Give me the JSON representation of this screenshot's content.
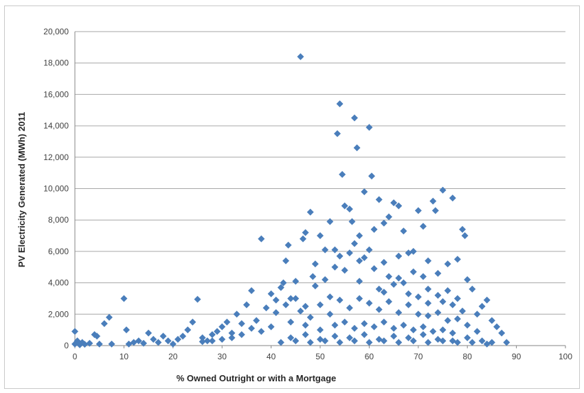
{
  "chart_data": {
    "type": "scatter",
    "title": "",
    "xlabel": "% Owned Outright or with a Mortgage",
    "ylabel": "PV Electricity Generated (MWh) 2011",
    "xlim": [
      0,
      100
    ],
    "ylim": [
      0,
      20000
    ],
    "x_ticks": [
      "0",
      "10",
      "20",
      "30",
      "40",
      "50",
      "60",
      "70",
      "80",
      "90",
      "100"
    ],
    "y_ticks": [
      "0",
      "2,000",
      "4,000",
      "6,000",
      "8,000",
      "10,000",
      "12,000",
      "14,000",
      "16,000",
      "18,000",
      "20,000"
    ],
    "grid": "horizontal",
    "legend": "none",
    "marker": "diamond",
    "color": "#4a7ebb",
    "points": [
      [
        0,
        900
      ],
      [
        0,
        100
      ],
      [
        0.5,
        300
      ],
      [
        1,
        50
      ],
      [
        1.5,
        200
      ],
      [
        2,
        80
      ],
      [
        3,
        150
      ],
      [
        4,
        700
      ],
      [
        4.5,
        600
      ],
      [
        5,
        100
      ],
      [
        6,
        1400
      ],
      [
        7,
        1800
      ],
      [
        7.5,
        100
      ],
      [
        10,
        3000
      ],
      [
        10.5,
        1000
      ],
      [
        11,
        100
      ],
      [
        12,
        200
      ],
      [
        13,
        300
      ],
      [
        14,
        150
      ],
      [
        15,
        800
      ],
      [
        16,
        400
      ],
      [
        17,
        200
      ],
      [
        18,
        600
      ],
      [
        19,
        300
      ],
      [
        20,
        100
      ],
      [
        21,
        400
      ],
      [
        22,
        600
      ],
      [
        23,
        1000
      ],
      [
        24,
        1500
      ],
      [
        25,
        2950
      ],
      [
        26,
        500
      ],
      [
        27,
        300
      ],
      [
        28,
        700
      ],
      [
        29,
        900
      ],
      [
        30,
        1200
      ],
      [
        31,
        1500
      ],
      [
        32,
        800
      ],
      [
        33,
        2000
      ],
      [
        34,
        1400
      ],
      [
        35,
        2600
      ],
      [
        36,
        3500
      ],
      [
        37,
        1600
      ],
      [
        38,
        6800
      ],
      [
        39,
        2400
      ],
      [
        40,
        3300
      ],
      [
        41,
        2900
      ],
      [
        42,
        3700
      ],
      [
        42.5,
        4000
      ],
      [
        43,
        5400
      ],
      [
        43.5,
        6400
      ],
      [
        44,
        3000
      ],
      [
        45,
        4100
      ],
      [
        46,
        18400
      ],
      [
        46.5,
        6800
      ],
      [
        47,
        7200
      ],
      [
        48,
        8500
      ],
      [
        48.5,
        4400
      ],
      [
        49,
        5200
      ],
      [
        50,
        7000
      ],
      [
        51,
        6100
      ],
      [
        52,
        7900
      ],
      [
        53,
        6100
      ],
      [
        53.5,
        13500
      ],
      [
        54,
        15400
      ],
      [
        54.5,
        10900
      ],
      [
        55,
        8900
      ],
      [
        56,
        8700
      ],
      [
        56.5,
        7900
      ],
      [
        57,
        14500
      ],
      [
        57.5,
        12600
      ],
      [
        58,
        7000
      ],
      [
        59,
        9800
      ],
      [
        60,
        13900
      ],
      [
        60.5,
        10800
      ],
      [
        61,
        7400
      ],
      [
        62,
        9300
      ],
      [
        63,
        7800
      ],
      [
        64,
        8200
      ],
      [
        65,
        9100
      ],
      [
        66,
        8900
      ],
      [
        67,
        7300
      ],
      [
        68,
        5900
      ],
      [
        69,
        6000
      ],
      [
        70,
        8600
      ],
      [
        71,
        7600
      ],
      [
        72,
        5400
      ],
      [
        73,
        9200
      ],
      [
        73.5,
        8600
      ],
      [
        74,
        4600
      ],
      [
        75,
        9900
      ],
      [
        76,
        5200
      ],
      [
        77,
        9400
      ],
      [
        78,
        5500
      ],
      [
        79,
        7400
      ],
      [
        79.5,
        7000
      ],
      [
        80,
        4200
      ],
      [
        81,
        3600
      ],
      [
        82,
        2000
      ],
      [
        83,
        2500
      ],
      [
        84,
        2900
      ],
      [
        85,
        1600
      ],
      [
        86,
        1200
      ],
      [
        87,
        800
      ],
      [
        88,
        200
      ],
      [
        45,
        3000
      ],
      [
        47,
        2500
      ],
      [
        49,
        3800
      ],
      [
        51,
        4200
      ],
      [
        52,
        3100
      ],
      [
        53,
        5000
      ],
      [
        55,
        4800
      ],
      [
        56,
        5900
      ],
      [
        58,
        4100
      ],
      [
        59,
        5600
      ],
      [
        61,
        4900
      ],
      [
        62,
        3600
      ],
      [
        63,
        5300
      ],
      [
        64,
        4400
      ],
      [
        65,
        3900
      ],
      [
        66,
        5700
      ],
      [
        67,
        4000
      ],
      [
        68,
        3300
      ],
      [
        69,
        4700
      ],
      [
        70,
        3100
      ],
      [
        71,
        4400
      ],
      [
        72,
        2700
      ],
      [
        74,
        3200
      ],
      [
        75,
        2800
      ],
      [
        76,
        3500
      ],
      [
        77,
        2600
      ],
      [
        78,
        3000
      ],
      [
        79,
        2200
      ],
      [
        44,
        1500
      ],
      [
        46,
        2200
      ],
      [
        48,
        1800
      ],
      [
        50,
        2600
      ],
      [
        52,
        2000
      ],
      [
        54,
        2900
      ],
      [
        56,
        2400
      ],
      [
        58,
        3000
      ],
      [
        60,
        2700
      ],
      [
        62,
        2300
      ],
      [
        64,
        2800
      ],
      [
        66,
        2100
      ],
      [
        68,
        2600
      ],
      [
        70,
        2000
      ],
      [
        72,
        1900
      ],
      [
        74,
        2100
      ],
      [
        76,
        1600
      ],
      [
        78,
        1700
      ],
      [
        80,
        1300
      ],
      [
        82,
        900
      ],
      [
        40,
        1200
      ],
      [
        38,
        900
      ],
      [
        36,
        1100
      ],
      [
        34,
        700
      ],
      [
        32,
        500
      ],
      [
        30,
        400
      ],
      [
        28,
        300
      ],
      [
        26,
        250
      ],
      [
        50,
        1000
      ],
      [
        53,
        1300
      ],
      [
        55,
        1500
      ],
      [
        57,
        1100
      ],
      [
        59,
        1400
      ],
      [
        61,
        1200
      ],
      [
        63,
        1500
      ],
      [
        65,
        1100
      ],
      [
        67,
        1300
      ],
      [
        69,
        1000
      ],
      [
        71,
        1200
      ],
      [
        73,
        900
      ],
      [
        75,
        1000
      ],
      [
        77,
        800
      ],
      [
        44,
        500
      ],
      [
        47,
        700
      ],
      [
        50,
        400
      ],
      [
        53,
        600
      ],
      [
        56,
        500
      ],
      [
        59,
        700
      ],
      [
        62,
        400
      ],
      [
        65,
        600
      ],
      [
        68,
        500
      ],
      [
        71,
        700
      ],
      [
        74,
        400
      ],
      [
        77,
        300
      ],
      [
        80,
        500
      ],
      [
        83,
        300
      ],
      [
        85,
        200
      ],
      [
        42,
        200
      ],
      [
        45,
        300
      ],
      [
        48,
        200
      ],
      [
        51,
        300
      ],
      [
        54,
        200
      ],
      [
        57,
        300
      ],
      [
        60,
        200
      ],
      [
        63,
        300
      ],
      [
        66,
        200
      ],
      [
        69,
        300
      ],
      [
        72,
        200
      ],
      [
        75,
        300
      ],
      [
        78,
        200
      ],
      [
        81,
        200
      ],
      [
        84,
        100
      ],
      [
        41,
        2100
      ],
      [
        43,
        2600
      ],
      [
        57,
        6500
      ],
      [
        60,
        6100
      ],
      [
        58,
        5400
      ],
      [
        54,
        5700
      ],
      [
        66,
        4300
      ],
      [
        72,
        3600
      ],
      [
        63,
        3400
      ],
      [
        47,
        1300
      ]
    ]
  }
}
